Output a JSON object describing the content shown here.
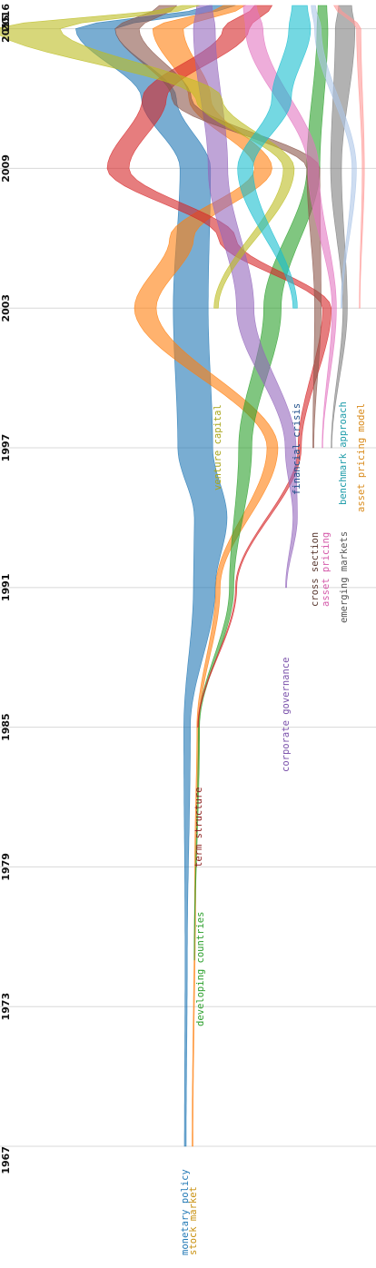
{
  "chart_data": {
    "type": "streamgraph",
    "title": "",
    "xlabel": "",
    "ylabel": "",
    "orientation": "vertical",
    "time_axis": {
      "range": [
        1967,
        2016
      ],
      "tick_labels": [
        "1967",
        "1973",
        "1979",
        "1985",
        "1991",
        "1997",
        "2003",
        "2009",
        "2015",
        "2016"
      ]
    },
    "grid": true,
    "series": [
      {
        "name": "monetary policy",
        "color": "#1f77b4",
        "start": 1967,
        "points": [
          [
            1967,
            0.8
          ],
          [
            1975,
            1
          ],
          [
            1985,
            3
          ],
          [
            1991,
            10
          ],
          [
            1994,
            15
          ],
          [
            1997,
            16
          ],
          [
            2003,
            16
          ],
          [
            2009,
            14
          ],
          [
            2012,
            16
          ],
          [
            2015,
            18
          ],
          [
            2016,
            12
          ]
        ]
      },
      {
        "name": "stock market",
        "color": "#ff7f0e",
        "start": 1967,
        "points": [
          [
            1967,
            0.4
          ],
          [
            1979,
            0.5
          ],
          [
            1985,
            1
          ],
          [
            1991,
            2
          ],
          [
            1997,
            5
          ],
          [
            2003,
            10
          ],
          [
            2006,
            11
          ],
          [
            2009,
            8
          ],
          [
            2012,
            10
          ],
          [
            2015,
            14
          ],
          [
            2016,
            10
          ]
        ]
      },
      {
        "name": "developing countries",
        "color": "#2ca02c",
        "start": 1975,
        "points": [
          [
            1975,
            0.2
          ],
          [
            1985,
            0.6
          ],
          [
            1991,
            2
          ],
          [
            1997,
            6
          ],
          [
            2003,
            8
          ],
          [
            2009,
            6
          ],
          [
            2015,
            5
          ],
          [
            2016,
            4
          ]
        ]
      },
      {
        "name": "term structure",
        "color": "#d62728",
        "start": 1985,
        "points": [
          [
            1985,
            0.3
          ],
          [
            1991,
            0.6
          ],
          [
            1997,
            1.5
          ],
          [
            2003,
            4
          ],
          [
            2006,
            8
          ],
          [
            2009,
            10
          ],
          [
            2012,
            11
          ],
          [
            2015,
            12
          ],
          [
            2016,
            8
          ]
        ]
      },
      {
        "name": "corporate governance",
        "color": "#9467bd",
        "start": 1991,
        "points": [
          [
            1991,
            0.5
          ],
          [
            1994,
            2
          ],
          [
            1997,
            5
          ],
          [
            2003,
            8
          ],
          [
            2009,
            9
          ],
          [
            2015,
            10
          ],
          [
            2016,
            7
          ]
        ]
      },
      {
        "name": "cross section",
        "color": "#8c564b",
        "start": 1997,
        "points": [
          [
            1997,
            0.5
          ],
          [
            2003,
            3
          ],
          [
            2009,
            6
          ],
          [
            2012,
            9
          ],
          [
            2015,
            11
          ],
          [
            2016,
            8
          ]
        ]
      },
      {
        "name": "asset pricing",
        "color": "#e377c2",
        "start": 1997,
        "points": [
          [
            1997,
            0.3
          ],
          [
            2003,
            2
          ],
          [
            2009,
            5
          ],
          [
            2015,
            8
          ],
          [
            2016,
            6
          ]
        ]
      },
      {
        "name": "emerging markets",
        "color": "#7f7f7f",
        "start": 1997,
        "points": [
          [
            1997,
            0.3
          ],
          [
            2003,
            2
          ],
          [
            2009,
            5
          ],
          [
            2015,
            9
          ],
          [
            2016,
            6
          ]
        ]
      },
      {
        "name": "venture capital",
        "color": "#bcbd22",
        "start": 2003,
        "points": [
          [
            2003,
            2
          ],
          [
            2009,
            5
          ],
          [
            2012,
            12
          ],
          [
            2015,
            30
          ],
          [
            2016,
            8
          ]
        ]
      },
      {
        "name": "financial crisis",
        "color": "#17becf",
        "start": 2003,
        "points": [
          [
            2003,
            2
          ],
          [
            2009,
            7
          ],
          [
            2012,
            9
          ],
          [
            2015,
            10
          ],
          [
            2016,
            7
          ]
        ]
      },
      {
        "name": "benchmark approach",
        "color": "#aec7e8",
        "start": 2003,
        "points": [
          [
            2003,
            0.5
          ],
          [
            2009,
            2
          ],
          [
            2015,
            3
          ],
          [
            2016,
            2
          ]
        ]
      },
      {
        "name": "asset pricing model",
        "color": "#ff9896",
        "start": 2003,
        "points": [
          [
            2003,
            0.3
          ],
          [
            2009,
            1
          ],
          [
            2015,
            2
          ],
          [
            2016,
            2
          ]
        ]
      }
    ],
    "labels": [
      {
        "text": "monetary policy",
        "color": "#1f77b4"
      },
      {
        "text": "stock market",
        "color": "#c9900e"
      },
      {
        "text": "developing countries",
        "color": "#2ca02c"
      },
      {
        "text": "term structure",
        "color": "#8b1a1a"
      },
      {
        "text": "corporate governance",
        "color": "#7b52ab"
      },
      {
        "text": "cross section",
        "color": "#5a3a32"
      },
      {
        "text": "asset pricing",
        "color": "#d45aaa"
      },
      {
        "text": "emerging markets",
        "color": "#555555"
      },
      {
        "text": "venture capital",
        "color": "#a8a51a"
      },
      {
        "text": "financial crisis",
        "color": "#1f4f8a"
      },
      {
        "text": "benchmark approach",
        "color": "#1a9aa8"
      },
      {
        "text": "asset pricing model",
        "color": "#d98a1a"
      }
    ]
  }
}
